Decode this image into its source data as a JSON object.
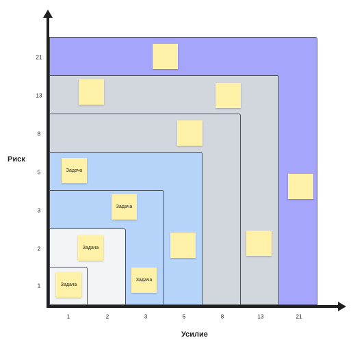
{
  "axes": {
    "y_title": "Риск",
    "x_title": "Усилие",
    "y_ticks": [
      "21",
      "13",
      "8",
      "5",
      "3",
      "2",
      "1"
    ],
    "x_ticks": [
      "1",
      "2",
      "3",
      "5",
      "8",
      "13",
      "21"
    ]
  },
  "zones": [
    {
      "level": "21",
      "color": "#a5a5fb"
    },
    {
      "level": "13",
      "color": "#d2d7dd"
    },
    {
      "level": "8",
      "color": "#d2d7dd"
    },
    {
      "level": "5",
      "color": "#b6d4fa"
    },
    {
      "level": "3",
      "color": "#b6d4fa"
    },
    {
      "level": "2",
      "color": "#f3f4f5"
    },
    {
      "level": "1",
      "color": "#f3f4f5"
    }
  ],
  "notes": [
    {
      "label": ""
    },
    {
      "label": ""
    },
    {
      "label": ""
    },
    {
      "label": ""
    },
    {
      "label": "Задача"
    },
    {
      "label": ""
    },
    {
      "label": "Задача"
    },
    {
      "label": ""
    },
    {
      "label": "Задача"
    },
    {
      "label": ""
    },
    {
      "label": "Задача"
    },
    {
      "label": "Задача"
    }
  ]
}
